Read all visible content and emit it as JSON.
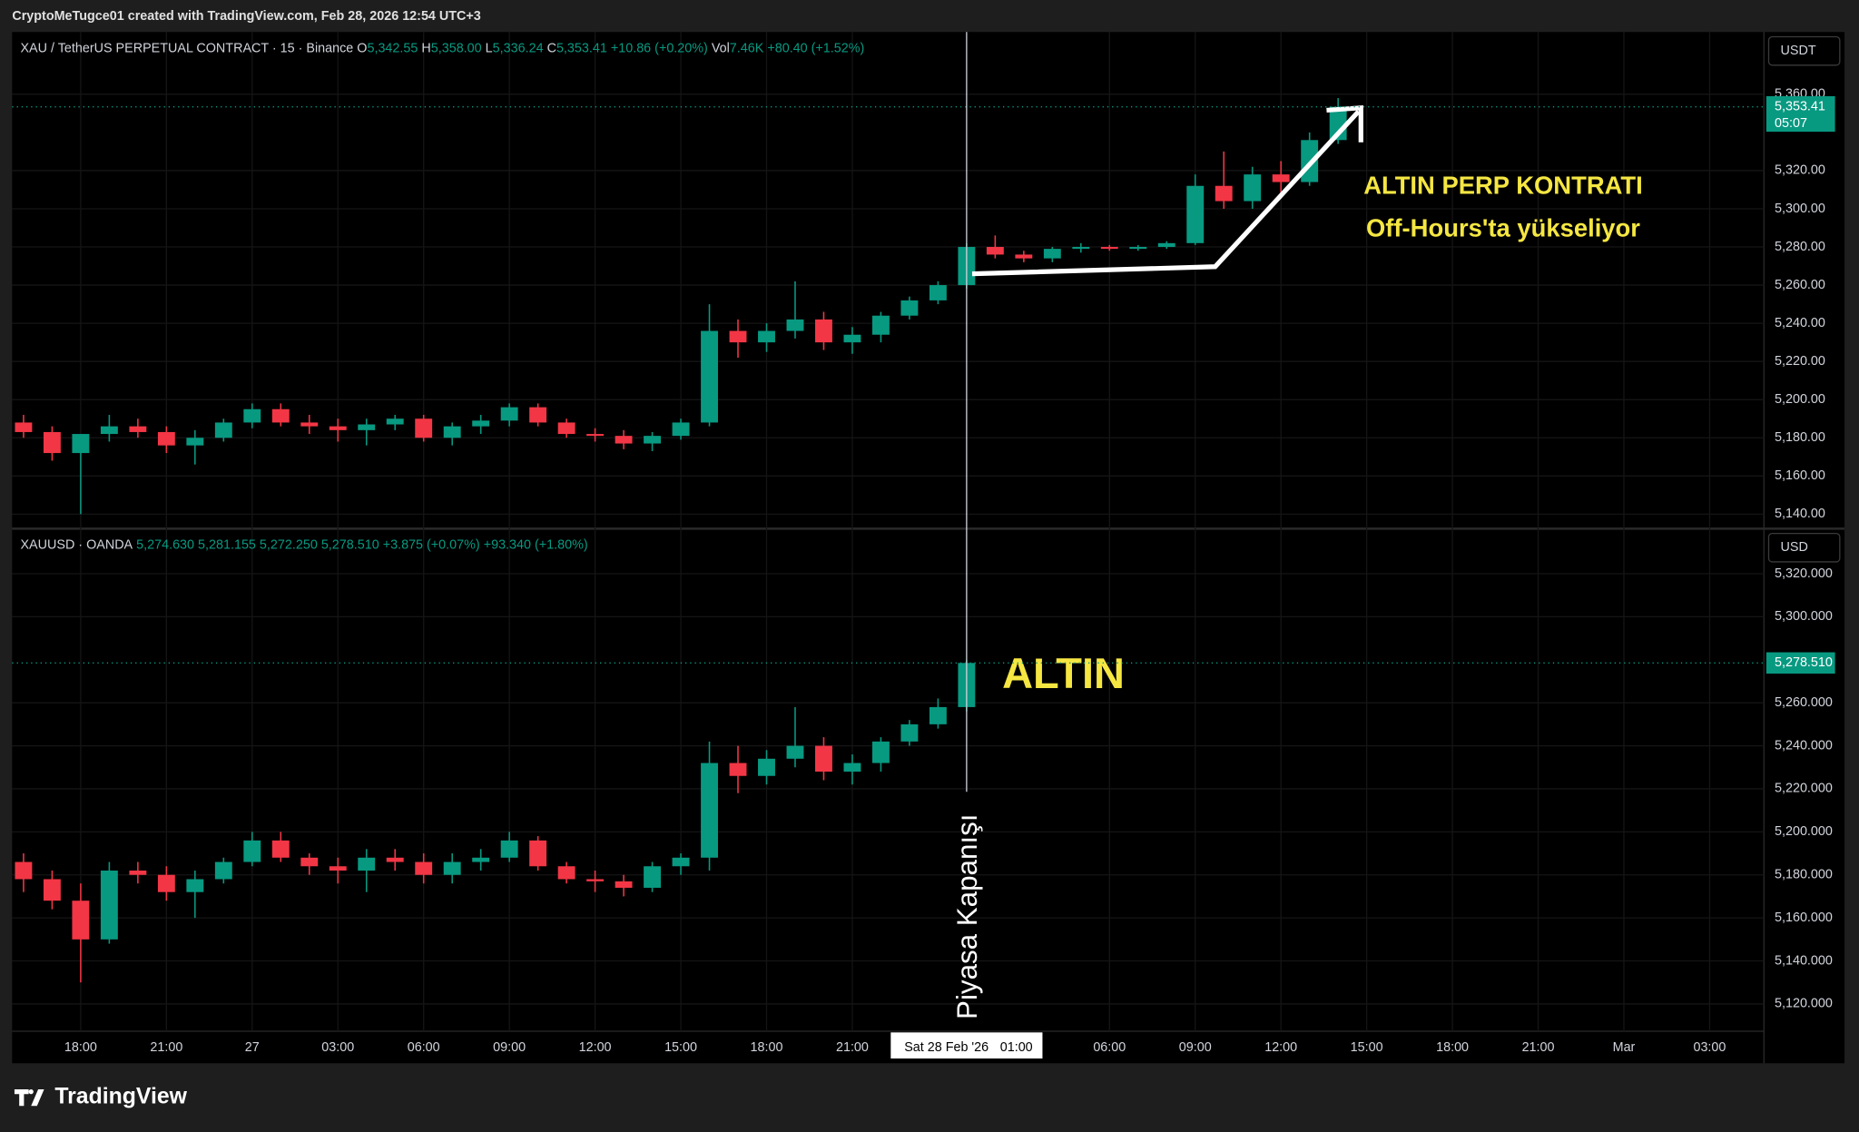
{
  "header": {
    "watermark": "CryptoMeTugce01 created with TradingView.com, Feb 28, 2026 12:54 UTC+3"
  },
  "footer": {
    "logo": "TradingView"
  },
  "annotations": {
    "top_line1": "ALTIN PERP KONTRATI",
    "top_line2": "Off-Hours'ta yükseliyor",
    "bottom": "ALTIN",
    "vertical": "Piyasa Kapanışı"
  },
  "crosshair": {
    "x": 49,
    "date": "Sat 28 Feb '26",
    "time": "01:00"
  },
  "chart_data": [
    {
      "type": "candlestick",
      "title": "XAU / TetherUS PERPETUAL CONTRACT · 15 · Binance",
      "legend": {
        "o_key": "O",
        "o": "5,342.55",
        "h_key": "H",
        "h": "5,358.00",
        "l_key": "L",
        "l": "5,336.24",
        "c_key": "C",
        "c": "5,353.41",
        "change": "+10.86 (+0.20%)",
        "vol_key": "Vol",
        "vol": "7.46K",
        "vol_change": "+80.40 (+1.52%)"
      },
      "currency": "USDT",
      "last_price": {
        "value": 5353.41,
        "label": "5,353.41"
      },
      "countdown": "05:07",
      "up_color": "#089981",
      "down_color": "#f23645",
      "xlim": [
        15.6,
        76.9
      ],
      "ylim": [
        5133,
        5392
      ],
      "yticks": [
        {
          "value": 5140,
          "label": "5,140.00"
        },
        {
          "value": 5160,
          "label": "5,160.00"
        },
        {
          "value": 5180,
          "label": "5,180.00"
        },
        {
          "value": 5200,
          "label": "5,200.00"
        },
        {
          "value": 5220,
          "label": "5,220.00"
        },
        {
          "value": 5240,
          "label": "5,240.00"
        },
        {
          "value": 5260,
          "label": "5,260.00"
        },
        {
          "value": 5280,
          "label": "5,280.00"
        },
        {
          "value": 5300,
          "label": "5,300.00"
        },
        {
          "value": 5320,
          "label": "5,320.00"
        },
        {
          "value": 5360,
          "label": "5,360.00"
        }
      ],
      "x": [
        16,
        17,
        18,
        19,
        20,
        21,
        22,
        23,
        24,
        25,
        26,
        27,
        28,
        29,
        30,
        31,
        32,
        33,
        34,
        35,
        36,
        37,
        38,
        39,
        40,
        41,
        42,
        43,
        44,
        45,
        46,
        47,
        48,
        49,
        50,
        51,
        52,
        53,
        54,
        55,
        56,
        57,
        58,
        59,
        60,
        61,
        62
      ],
      "ohlc": [
        [
          5188,
          5192,
          5180,
          5183
        ],
        [
          5183,
          5186,
          5168,
          5172
        ],
        [
          5172,
          5180,
          5140,
          5182
        ],
        [
          5182,
          5192,
          5178,
          5186
        ],
        [
          5186,
          5190,
          5180,
          5183
        ],
        [
          5183,
          5186,
          5172,
          5176
        ],
        [
          5176,
          5184,
          5166,
          5180
        ],
        [
          5180,
          5190,
          5178,
          5188
        ],
        [
          5188,
          5198,
          5185,
          5195
        ],
        [
          5195,
          5198,
          5186,
          5188
        ],
        [
          5188,
          5192,
          5182,
          5186
        ],
        [
          5186,
          5190,
          5178,
          5184
        ],
        [
          5184,
          5190,
          5176,
          5187
        ],
        [
          5187,
          5192,
          5184,
          5190
        ],
        [
          5190,
          5192,
          5178,
          5180
        ],
        [
          5180,
          5188,
          5176,
          5186
        ],
        [
          5186,
          5192,
          5182,
          5189
        ],
        [
          5189,
          5198,
          5186,
          5196
        ],
        [
          5196,
          5198,
          5186,
          5188
        ],
        [
          5188,
          5190,
          5180,
          5182
        ],
        [
          5182,
          5185,
          5178,
          5181
        ],
        [
          5181,
          5184,
          5174,
          5177
        ],
        [
          5177,
          5183,
          5173,
          5181
        ],
        [
          5181,
          5190,
          5179,
          5188
        ],
        [
          5188,
          5250,
          5186,
          5236
        ],
        [
          5236,
          5242,
          5222,
          5230
        ],
        [
          5230,
          5240,
          5225,
          5236
        ],
        [
          5236,
          5262,
          5232,
          5242
        ],
        [
          5242,
          5246,
          5226,
          5230
        ],
        [
          5230,
          5238,
          5224,
          5234
        ],
        [
          5234,
          5246,
          5230,
          5244
        ],
        [
          5244,
          5254,
          5242,
          5252
        ],
        [
          5252,
          5262,
          5250,
          5260
        ],
        [
          5260,
          5282,
          5258,
          5280
        ],
        [
          5280,
          5286,
          5274,
          5276
        ],
        [
          5276,
          5278,
          5272,
          5274
        ],
        [
          5274,
          5280,
          5272,
          5279
        ],
        [
          5279,
          5282,
          5277,
          5280
        ],
        [
          5280,
          5281,
          5278,
          5279
        ],
        [
          5279,
          5281,
          5278,
          5280
        ],
        [
          5280,
          5283,
          5279,
          5282
        ],
        [
          5282,
          5318,
          5281,
          5312
        ],
        [
          5312,
          5330,
          5300,
          5304
        ],
        [
          5304,
          5322,
          5300,
          5318
        ],
        [
          5318,
          5325,
          5308,
          5314
        ],
        [
          5314,
          5340,
          5312,
          5336
        ],
        [
          5336,
          5358,
          5334,
          5353.41
        ]
      ]
    },
    {
      "type": "candlestick",
      "title": "XAUUSD · OANDA",
      "legend": {
        "o": "5,274.630",
        "h": "5,281.155",
        "l": "5,272.250",
        "c": "5,278.510",
        "change": "+3.875 (+0.07%)",
        "change2": "+93.340 (+1.80%)"
      },
      "currency": "USD",
      "last_price": {
        "value": 5278.51,
        "label": "5,278.510"
      },
      "up_color": "#089981",
      "down_color": "#f23645",
      "xlim": [
        15.6,
        76.9
      ],
      "ylim": [
        5107.3,
        5340.4
      ],
      "yticks": [
        {
          "value": 5120,
          "label": "5,120.000"
        },
        {
          "value": 5140,
          "label": "5,140.000"
        },
        {
          "value": 5160,
          "label": "5,160.000"
        },
        {
          "value": 5180,
          "label": "5,180.000"
        },
        {
          "value": 5200,
          "label": "5,200.000"
        },
        {
          "value": 5220,
          "label": "5,220.000"
        },
        {
          "value": 5240,
          "label": "5,240.000"
        },
        {
          "value": 5260,
          "label": "5,260.000"
        },
        {
          "value": 5300,
          "label": "5,300.000"
        },
        {
          "value": 5320,
          "label": "5,320.000"
        }
      ],
      "xticks": [
        {
          "value": 18,
          "label": "18:00"
        },
        {
          "value": 21,
          "label": "21:00"
        },
        {
          "value": 24,
          "label": "27"
        },
        {
          "value": 27,
          "label": "03:00"
        },
        {
          "value": 30,
          "label": "06:00"
        },
        {
          "value": 33,
          "label": "09:00"
        },
        {
          "value": 36,
          "label": "12:00"
        },
        {
          "value": 39,
          "label": "15:00"
        },
        {
          "value": 42,
          "label": "18:00"
        },
        {
          "value": 45,
          "label": "21:00"
        },
        {
          "value": 54,
          "label": "06:00"
        },
        {
          "value": 57,
          "label": "09:00"
        },
        {
          "value": 60,
          "label": "12:00"
        },
        {
          "value": 63,
          "label": "15:00"
        },
        {
          "value": 66,
          "label": "18:00"
        },
        {
          "value": 69,
          "label": "21:00"
        },
        {
          "value": 72,
          "label": "Mar"
        },
        {
          "value": 75,
          "label": "03:00"
        }
      ],
      "x": [
        16,
        17,
        18,
        19,
        20,
        21,
        22,
        23,
        24,
        25,
        26,
        27,
        28,
        29,
        30,
        31,
        32,
        33,
        34,
        35,
        36,
        37,
        38,
        39,
        40,
        41,
        42,
        43,
        44,
        45,
        46,
        47,
        48,
        49
      ],
      "ohlc": [
        [
          5186,
          5190,
          5172,
          5178
        ],
        [
          5178,
          5182,
          5164,
          5168
        ],
        [
          5168,
          5176,
          5130,
          5150
        ],
        [
          5150,
          5186,
          5148,
          5182
        ],
        [
          5182,
          5186,
          5176,
          5180
        ],
        [
          5180,
          5184,
          5168,
          5172
        ],
        [
          5172,
          5182,
          5160,
          5178
        ],
        [
          5178,
          5188,
          5176,
          5186
        ],
        [
          5186,
          5200,
          5184,
          5196
        ],
        [
          5196,
          5200,
          5186,
          5188
        ],
        [
          5188,
          5190,
          5180,
          5184
        ],
        [
          5184,
          5188,
          5176,
          5182
        ],
        [
          5182,
          5192,
          5172,
          5188
        ],
        [
          5188,
          5192,
          5182,
          5186
        ],
        [
          5186,
          5190,
          5176,
          5180
        ],
        [
          5180,
          5190,
          5176,
          5186
        ],
        [
          5186,
          5192,
          5182,
          5188
        ],
        [
          5188,
          5200,
          5186,
          5196
        ],
        [
          5196,
          5198,
          5182,
          5184
        ],
        [
          5184,
          5186,
          5176,
          5178
        ],
        [
          5178,
          5182,
          5172,
          5177
        ],
        [
          5177,
          5180,
          5170,
          5174
        ],
        [
          5174,
          5186,
          5172,
          5184
        ],
        [
          5184,
          5190,
          5180,
          5188
        ],
        [
          5188,
          5242,
          5182,
          5232
        ],
        [
          5232,
          5240,
          5218,
          5226
        ],
        [
          5226,
          5238,
          5222,
          5234
        ],
        [
          5234,
          5258,
          5230,
          5240
        ],
        [
          5240,
          5244,
          5224,
          5228
        ],
        [
          5228,
          5236,
          5222,
          5232
        ],
        [
          5232,
          5244,
          5228,
          5242
        ],
        [
          5242,
          5252,
          5240,
          5250
        ],
        [
          5250,
          5262,
          5248,
          5258
        ],
        [
          5258,
          5280,
          5256,
          5278.51
        ]
      ]
    }
  ]
}
